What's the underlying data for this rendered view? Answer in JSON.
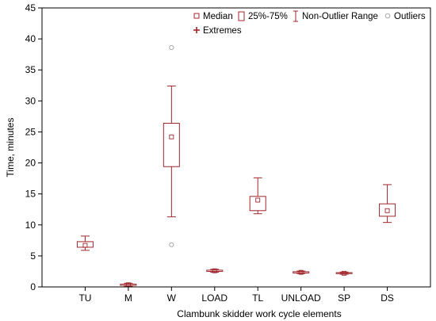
{
  "colors": {
    "box": "#a0262c",
    "outlier": "#a8a8a8",
    "axis": "#000000",
    "background": "#ffffff"
  },
  "chart_data": {
    "type": "boxplot",
    "xlabel": "Clambunk skidder work cycle elements",
    "ylabel": "Time, minutes",
    "ylim": [
      0,
      45
    ],
    "yticks": [
      0,
      5,
      10,
      15,
      20,
      25,
      30,
      35,
      40,
      45
    ],
    "grid": false,
    "legend_position": "top-right",
    "legend": {
      "median": "Median",
      "iqr": "25%-75%",
      "range": "Non-Outlier Range",
      "outliers": "Outliers",
      "extremes": "Extremes"
    },
    "categories": [
      "TU",
      "M",
      "W",
      "LOAD",
      "TL",
      "UNLOAD",
      "SP",
      "DS"
    ],
    "boxes": [
      {
        "category": "TU",
        "whisker_low": 5.9,
        "q1": 6.4,
        "median": 6.7,
        "q3": 7.3,
        "whisker_high": 8.2,
        "outliers": [],
        "extremes": []
      },
      {
        "category": "M",
        "whisker_low": 0.1,
        "q1": 0.25,
        "median": 0.35,
        "q3": 0.45,
        "whisker_high": 0.6,
        "outliers": [],
        "extremes": []
      },
      {
        "category": "W",
        "whisker_low": 11.3,
        "q1": 19.4,
        "median": 24.2,
        "q3": 26.4,
        "whisker_high": 32.4,
        "outliers": [
          38.6,
          6.8
        ],
        "extremes": []
      },
      {
        "category": "LOAD",
        "whisker_low": 2.35,
        "q1": 2.5,
        "median": 2.6,
        "q3": 2.7,
        "whisker_high": 2.85,
        "outliers": [],
        "extremes": []
      },
      {
        "category": "TL",
        "whisker_low": 11.8,
        "q1": 12.3,
        "median": 14.0,
        "q3": 14.6,
        "whisker_high": 17.6,
        "outliers": [],
        "extremes": []
      },
      {
        "category": "UNLOAD",
        "whisker_low": 2.15,
        "q1": 2.25,
        "median": 2.35,
        "q3": 2.45,
        "whisker_high": 2.55,
        "outliers": [],
        "extremes": []
      },
      {
        "category": "SP",
        "whisker_low": 2.05,
        "q1": 2.15,
        "median": 2.2,
        "q3": 2.3,
        "whisker_high": 2.4,
        "outliers": [],
        "extremes": []
      },
      {
        "category": "DS",
        "whisker_low": 10.4,
        "q1": 11.4,
        "median": 12.3,
        "q3": 13.4,
        "whisker_high": 16.5,
        "outliers": [],
        "extremes": []
      }
    ]
  }
}
